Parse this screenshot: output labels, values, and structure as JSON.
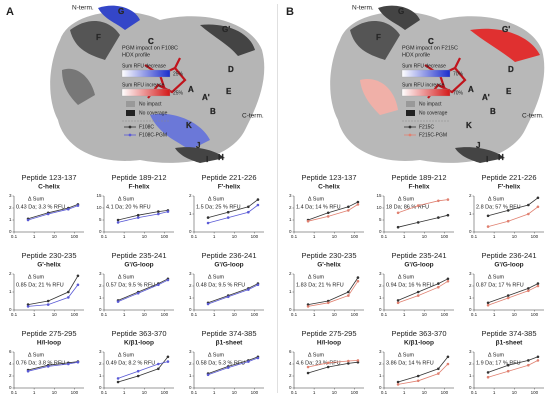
{
  "panels": [
    {
      "label": "A",
      "legend_title": [
        "PGM impact on F108C",
        "HDX profile"
      ],
      "decrease": "Sum RFU decrease",
      "decrease_max": "25%",
      "increase": "Sum RFU increase",
      "increase_max": "25%",
      "no_impact": "No impact",
      "no_coverage": "No coverage",
      "legend": [
        {
          "name": "F108C",
          "color": "#333333"
        },
        {
          "name": "F108C-PGM",
          "color": "#5a5ad6"
        }
      ],
      "structure_labels": [
        "N-term.",
        "C-term.",
        "G",
        "F",
        "C",
        "G'",
        "D",
        "E",
        "A",
        "A'",
        "B",
        "K",
        "J",
        "I",
        "H"
      ]
    },
    {
      "label": "B",
      "legend_title": [
        "PGM impact on F215C",
        "HDX profile"
      ],
      "decrease": "Sum RFU decrease",
      "decrease_max": "70%",
      "increase": "Sum RFU increase",
      "increase_max": "70%",
      "no_impact": "No impact",
      "no_coverage": "No coverage",
      "legend": [
        {
          "name": "F215C",
          "color": "#333333"
        },
        {
          "name": "F215C-PGM",
          "color": "#e08070"
        }
      ],
      "structure_labels": [
        "N-term.",
        "C-term.",
        "G",
        "F",
        "C",
        "G'",
        "D",
        "E",
        "A",
        "A'",
        "B",
        "K",
        "J",
        "I",
        "H"
      ]
    }
  ],
  "chart_data": [
    {
      "type": "line",
      "title": "Peptide 123-137",
      "subtitle": "C-helix",
      "annotation_label": "Δ Sum",
      "annotation": "0.43 Da; 3.3 % RFU",
      "log_x": true,
      "x": [
        0.5,
        5,
        50,
        150
      ],
      "xlim": [
        0.1,
        300
      ],
      "xticks": [
        0.1,
        1,
        10,
        100
      ],
      "ylim": [
        0,
        3
      ],
      "yticks": [
        0,
        1,
        2,
        3
      ],
      "series": [
        {
          "color": "#333333",
          "values": [
            1.1,
            1.6,
            2.0,
            2.3
          ]
        },
        {
          "color": "#5a5ad6",
          "values": [
            1.0,
            1.5,
            1.9,
            2.2
          ]
        }
      ]
    },
    {
      "type": "line",
      "title": "Peptide 189-212",
      "subtitle": "F-helix",
      "annotation_label": "Δ Sum",
      "annotation": "4.1 Da; 20 % RFU",
      "log_x": true,
      "x": [
        0.5,
        5,
        50,
        150
      ],
      "xlim": [
        0.1,
        300
      ],
      "xticks": [
        0.1,
        1,
        10,
        100
      ],
      "ylim": [
        0,
        15
      ],
      "yticks": [
        0,
        5,
        10,
        15
      ],
      "series": [
        {
          "color": "#333333",
          "values": [
            5,
            7,
            8.5,
            9
          ]
        },
        {
          "color": "#5a5ad6",
          "values": [
            4,
            6,
            7.5,
            8.5
          ]
        }
      ]
    },
    {
      "type": "line",
      "title": "Peptide 221-226",
      "subtitle": "F'-helix",
      "annotation_label": "Δ Sum",
      "annotation": "1.5 Da; 25 % RFU",
      "log_x": true,
      "x": [
        0.5,
        5,
        50,
        150
      ],
      "xlim": [
        0.1,
        300
      ],
      "xticks": [
        0.1,
        1,
        10,
        100
      ],
      "ylim": [
        0,
        2
      ],
      "yticks": [
        0,
        1,
        2
      ],
      "series": [
        {
          "color": "#333333",
          "values": [
            0.8,
            1.1,
            1.4,
            1.8
          ]
        },
        {
          "color": "#5a5ad6",
          "values": [
            0.5,
            0.8,
            1.1,
            1.5
          ]
        }
      ]
    },
    {
      "type": "line",
      "title": "Peptide 230-235",
      "subtitle": "G'-helix",
      "annotation_label": "Δ Sum",
      "annotation": "0.85 Da; 21 % RFU",
      "log_x": true,
      "x": [
        0.5,
        5,
        50,
        150
      ],
      "xlim": [
        0.1,
        300
      ],
      "xticks": [
        0.1,
        1,
        10,
        100
      ],
      "ylim": [
        0,
        2
      ],
      "yticks": [
        0,
        1,
        2
      ],
      "series": [
        {
          "color": "#333333",
          "values": [
            0.3,
            0.5,
            1.0,
            1.9
          ]
        },
        {
          "color": "#5a5ad6",
          "values": [
            0.2,
            0.3,
            0.7,
            1.4
          ]
        }
      ]
    },
    {
      "type": "line",
      "title": "Peptide 235-241",
      "subtitle": "G'/G-loop",
      "annotation_label": "Δ Sum",
      "annotation": "0.57 Da; 9.5 % RFU",
      "log_x": true,
      "x": [
        0.5,
        5,
        50,
        150
      ],
      "xlim": [
        0.1,
        300
      ],
      "xticks": [
        0.1,
        1,
        10,
        100
      ],
      "ylim": [
        0,
        3
      ],
      "yticks": [
        0,
        1,
        2,
        3
      ],
      "series": [
        {
          "color": "#333333",
          "values": [
            0.8,
            1.5,
            2.2,
            2.6
          ]
        },
        {
          "color": "#5a5ad6",
          "values": [
            0.7,
            1.4,
            2.1,
            2.5
          ]
        }
      ]
    },
    {
      "type": "line",
      "title": "Peptide 236-241",
      "subtitle": "G'/G-loop",
      "annotation_label": "Δ Sum",
      "annotation": "0.48 Da; 9.5 % RFU",
      "log_x": true,
      "x": [
        0.5,
        5,
        50,
        150
      ],
      "xlim": [
        0.1,
        300
      ],
      "xticks": [
        0.1,
        1,
        10,
        100
      ],
      "ylim": [
        0,
        3
      ],
      "yticks": [
        0,
        1,
        2,
        3
      ],
      "series": [
        {
          "color": "#333333",
          "values": [
            0.6,
            1.2,
            1.8,
            2.2
          ]
        },
        {
          "color": "#5a5ad6",
          "values": [
            0.5,
            1.1,
            1.7,
            2.1
          ]
        }
      ]
    },
    {
      "type": "line",
      "title": "Peptide 275-295",
      "subtitle": "H/I-loop",
      "annotation_label": "Δ Sum",
      "annotation": "0.76 Da; 3.8 % RFU",
      "log_x": true,
      "x": [
        0.5,
        5,
        50,
        150
      ],
      "xlim": [
        0.1,
        300
      ],
      "xticks": [
        0.1,
        1,
        10,
        100
      ],
      "ylim": [
        0,
        6
      ],
      "yticks": [
        0,
        2,
        4,
        6
      ],
      "series": [
        {
          "color": "#333333",
          "values": [
            3,
            3.8,
            4.2,
            4.4
          ]
        },
        {
          "color": "#5a5ad6",
          "values": [
            2.8,
            3.6,
            4.0,
            4.3
          ]
        }
      ]
    },
    {
      "type": "line",
      "title": "Peptide 363-370",
      "subtitle": "K/β1-loop",
      "annotation_label": "Δ Sum",
      "annotation": "0.49 Da; 8.2 % RFU",
      "log_x": true,
      "x": [
        0.5,
        5,
        50,
        150
      ],
      "xlim": [
        0.1,
        300
      ],
      "xticks": [
        0.1,
        1,
        10,
        100
      ],
      "ylim": [
        0,
        3
      ],
      "yticks": [
        0,
        1,
        2,
        3
      ],
      "series": [
        {
          "color": "#333333",
          "values": [
            0.5,
            1.0,
            1.6,
            2.6
          ]
        },
        {
          "color": "#5a5ad6",
          "values": [
            0.8,
            1.4,
            2.0,
            2.2
          ]
        }
      ]
    },
    {
      "type": "line",
      "title": "Peptide 374-385",
      "subtitle": "β1-sheet",
      "annotation_label": "Δ Sum",
      "annotation": "0.58 Da; 5.3 % RFU",
      "log_x": true,
      "x": [
        0.5,
        5,
        50,
        150
      ],
      "xlim": [
        0.1,
        300
      ],
      "xticks": [
        0.1,
        1,
        10,
        100
      ],
      "ylim": [
        0,
        3
      ],
      "yticks": [
        0,
        1,
        2,
        3
      ],
      "series": [
        {
          "color": "#333333",
          "values": [
            1.2,
            1.8,
            2.3,
            2.6
          ]
        },
        {
          "color": "#5a5ad6",
          "values": [
            1.1,
            1.7,
            2.2,
            2.5
          ]
        }
      ]
    },
    {
      "type": "line",
      "title": "Peptide 123-137",
      "subtitle": "C-helix",
      "annotation_label": "Δ Sum",
      "annotation": "1.4 Da; 14 % RFU",
      "log_x": true,
      "x": [
        0.5,
        5,
        50,
        150
      ],
      "xlim": [
        0.1,
        300
      ],
      "xticks": [
        0.1,
        1,
        10,
        100
      ],
      "ylim": [
        0,
        3
      ],
      "yticks": [
        0,
        1,
        2,
        3
      ],
      "series": [
        {
          "color": "#333333",
          "values": [
            1.0,
            1.6,
            2.1,
            2.5
          ]
        },
        {
          "color": "#e08070",
          "values": [
            0.9,
            1.3,
            1.8,
            2.3
          ]
        }
      ]
    },
    {
      "type": "line",
      "title": "Peptide 189-212",
      "subtitle": "F-helix",
      "annotation_label": "Δ Sum",
      "annotation": "18 Da; 86 % RFU",
      "log_x": true,
      "x": [
        0.5,
        5,
        50,
        150
      ],
      "xlim": [
        0.1,
        300
      ],
      "xticks": [
        0.1,
        1,
        10,
        100
      ],
      "ylim": [
        0,
        15
      ],
      "yticks": [
        0,
        5,
        10,
        15
      ],
      "series": [
        {
          "color": "#333333",
          "values": [
            2,
            4,
            6,
            7
          ]
        },
        {
          "color": "#e08070",
          "values": [
            8,
            11,
            13,
            13.5
          ]
        }
      ]
    },
    {
      "type": "line",
      "title": "Peptide 221-226",
      "subtitle": "F'-helix",
      "annotation_label": "Δ Sum",
      "annotation": "2.8 Da; 57 % RFU",
      "log_x": true,
      "x": [
        0.5,
        5,
        50,
        150
      ],
      "xlim": [
        0.1,
        300
      ],
      "xticks": [
        0.1,
        1,
        10,
        100
      ],
      "ylim": [
        0,
        2
      ],
      "yticks": [
        0,
        1,
        2
      ],
      "series": [
        {
          "color": "#333333",
          "values": [
            0.9,
            1.2,
            1.5,
            1.9
          ]
        },
        {
          "color": "#e08070",
          "values": [
            0.3,
            0.6,
            1.0,
            1.4
          ]
        }
      ]
    },
    {
      "type": "line",
      "title": "Peptide 230-235",
      "subtitle": "G'-helix",
      "annotation_label": "Δ Sum",
      "annotation": "1.83 Da; 21 % RFU",
      "log_x": true,
      "x": [
        0.5,
        5,
        50,
        150
      ],
      "xlim": [
        0.1,
        300
      ],
      "xticks": [
        0.1,
        1,
        10,
        100
      ],
      "ylim": [
        0,
        2
      ],
      "yticks": [
        0,
        1,
        2
      ],
      "series": [
        {
          "color": "#333333",
          "values": [
            0.3,
            0.5,
            1.0,
            1.8
          ]
        },
        {
          "color": "#e08070",
          "values": [
            0.2,
            0.4,
            0.8,
            1.6
          ]
        }
      ]
    },
    {
      "type": "line",
      "title": "Peptide 235-241",
      "subtitle": "G'/G-loop",
      "annotation_label": "Δ Sum",
      "annotation": "0.94 Da; 16 % RFU",
      "log_x": true,
      "x": [
        0.5,
        5,
        50,
        150
      ],
      "xlim": [
        0.1,
        300
      ],
      "xticks": [
        0.1,
        1,
        10,
        100
      ],
      "ylim": [
        0,
        3
      ],
      "yticks": [
        0,
        1,
        2,
        3
      ],
      "series": [
        {
          "color": "#333333",
          "values": [
            0.8,
            1.5,
            2.2,
            2.6
          ]
        },
        {
          "color": "#e08070",
          "values": [
            0.6,
            1.2,
            1.9,
            2.4
          ]
        }
      ]
    },
    {
      "type": "line",
      "title": "Peptide 236-241",
      "subtitle": "G'/G-loop",
      "annotation_label": "Δ Sum",
      "annotation": "0.87 Da; 17 % RFU",
      "log_x": true,
      "x": [
        0.5,
        5,
        50,
        150
      ],
      "xlim": [
        0.1,
        300
      ],
      "xticks": [
        0.1,
        1,
        10,
        100
      ],
      "ylim": [
        0,
        3
      ],
      "yticks": [
        0,
        1,
        2,
        3
      ],
      "series": [
        {
          "color": "#333333",
          "values": [
            0.6,
            1.2,
            1.8,
            2.2
          ]
        },
        {
          "color": "#e08070",
          "values": [
            0.4,
            1.0,
            1.6,
            2.0
          ]
        }
      ]
    },
    {
      "type": "line",
      "title": "Peptide 275-295",
      "subtitle": "H/I-loop",
      "annotation_label": "Δ Sum",
      "annotation": "4.6 Da; 23 % RFU",
      "log_x": true,
      "x": [
        0.5,
        5,
        50,
        150
      ],
      "xlim": [
        0.1,
        300
      ],
      "xticks": [
        0.1,
        1,
        10,
        100
      ],
      "ylim": [
        0,
        6
      ],
      "yticks": [
        0,
        2,
        4,
        6
      ],
      "series": [
        {
          "color": "#333333",
          "values": [
            2.5,
            3.5,
            4.1,
            4.3
          ]
        },
        {
          "color": "#e08070",
          "values": [
            3.5,
            4.2,
            4.5,
            4.6
          ]
        }
      ]
    },
    {
      "type": "line",
      "title": "Peptide 363-370",
      "subtitle": "K/β1-loop",
      "annotation_label": "Δ Sum",
      "annotation": "3.86 Da; 14 % RFU",
      "log_x": true,
      "x": [
        0.5,
        5,
        50,
        150
      ],
      "xlim": [
        0.1,
        300
      ],
      "xticks": [
        0.1,
        1,
        10,
        100
      ],
      "ylim": [
        0,
        3
      ],
      "yticks": [
        0,
        1,
        2,
        3
      ],
      "series": [
        {
          "color": "#333333",
          "values": [
            0.5,
            1.0,
            1.6,
            2.6
          ]
        },
        {
          "color": "#e08070",
          "values": [
            0.3,
            0.6,
            1.2,
            2.0
          ]
        }
      ]
    },
    {
      "type": "line",
      "title": "Peptide 374-385",
      "subtitle": "β1-sheet",
      "annotation_label": "Δ Sum",
      "annotation": "1.9 Da; 17 % RFU",
      "log_x": true,
      "x": [
        0.5,
        5,
        50,
        150
      ],
      "xlim": [
        0.1,
        300
      ],
      "xticks": [
        0.1,
        1,
        10,
        100
      ],
      "ylim": [
        0,
        3
      ],
      "yticks": [
        0,
        1,
        2,
        3
      ],
      "series": [
        {
          "color": "#333333",
          "values": [
            1.3,
            1.9,
            2.3,
            2.6
          ]
        },
        {
          "color": "#e08070",
          "values": [
            0.9,
            1.4,
            1.9,
            2.3
          ]
        }
      ]
    }
  ]
}
